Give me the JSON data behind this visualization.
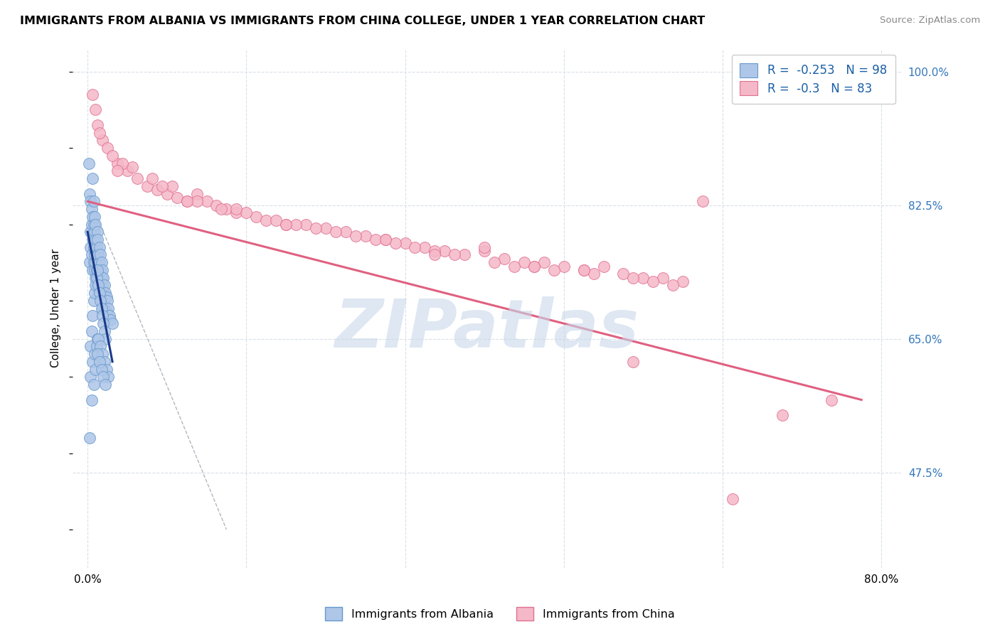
{
  "title": "IMMIGRANTS FROM ALBANIA VS IMMIGRANTS FROM CHINA COLLEGE, UNDER 1 YEAR CORRELATION CHART",
  "source": "Source: ZipAtlas.com",
  "ylabel": "College, Under 1 year",
  "right_yticks": [
    47.5,
    65.0,
    82.5,
    100.0
  ],
  "right_ytick_labels": [
    "47.5%",
    "65.0%",
    "82.5%",
    "100.0%"
  ],
  "xticks": [
    0.0,
    16.0,
    32.0,
    48.0,
    64.0,
    80.0
  ],
  "xtick_labels": [
    "0.0%",
    "",
    "",
    "",
    "",
    "80.0%"
  ],
  "xlim": [
    -1.5,
    82.0
  ],
  "ylim": [
    35.0,
    103.0
  ],
  "albania_color": "#aec6e8",
  "china_color": "#f5b8c8",
  "albania_edge": "#6699cc",
  "china_edge": "#e07090",
  "albania_R": -0.253,
  "albania_N": 98,
  "china_R": -0.3,
  "china_N": 83,
  "watermark": "ZIPatlas",
  "watermark_color": "#c8d8ea",
  "legend_color": "#1a5fa8",
  "albania_line_color": "#1a3a8a",
  "china_line_color": "#e06080",
  "dashed_line_color": "#b0b8c0",
  "grid_color": "#d8e0e8",
  "albania_scatter_x": [
    0.1,
    0.2,
    0.2,
    0.3,
    0.3,
    0.3,
    0.4,
    0.4,
    0.4,
    0.5,
    0.5,
    0.5,
    0.5,
    0.6,
    0.6,
    0.6,
    0.6,
    0.7,
    0.7,
    0.7,
    0.7,
    0.8,
    0.8,
    0.8,
    0.8,
    0.9,
    0.9,
    0.9,
    1.0,
    1.0,
    1.0,
    1.0,
    1.0,
    1.1,
    1.1,
    1.1,
    1.2,
    1.2,
    1.2,
    1.3,
    1.3,
    1.3,
    1.4,
    1.4,
    1.4,
    1.5,
    1.5,
    1.5,
    1.6,
    1.6,
    1.7,
    1.7,
    1.8,
    1.8,
    1.9,
    1.9,
    2.0,
    2.0,
    2.1,
    2.2,
    2.3,
    2.5,
    0.2,
    0.3,
    0.4,
    0.5,
    0.6,
    0.7,
    0.8,
    0.9,
    1.0,
    1.0,
    1.1,
    1.2,
    1.3,
    1.4,
    1.5,
    1.6,
    1.7,
    1.8,
    0.3,
    0.5,
    0.7,
    0.9,
    1.1,
    1.3,
    1.5,
    1.7,
    1.9,
    2.1,
    0.4,
    0.6,
    0.8,
    1.0,
    1.2,
    1.4,
    1.6,
    1.8
  ],
  "albania_scatter_y": [
    88.0,
    75.0,
    84.0,
    79.0,
    83.0,
    77.0,
    80.0,
    76.0,
    82.0,
    81.0,
    78.0,
    74.0,
    86.0,
    80.0,
    77.0,
    75.0,
    83.0,
    79.0,
    76.0,
    74.0,
    81.0,
    78.0,
    75.0,
    73.0,
    80.0,
    77.0,
    74.0,
    72.0,
    79.0,
    76.0,
    74.0,
    72.0,
    78.0,
    76.0,
    73.0,
    71.0,
    77.0,
    75.0,
    72.0,
    76.0,
    74.0,
    71.0,
    75.0,
    73.0,
    70.0,
    74.0,
    72.0,
    69.0,
    73.0,
    71.0,
    72.0,
    70.0,
    71.0,
    69.0,
    70.5,
    68.5,
    70.0,
    68.0,
    69.0,
    68.0,
    67.5,
    67.0,
    52.0,
    64.0,
    66.0,
    68.0,
    70.0,
    71.0,
    72.0,
    73.0,
    74.0,
    65.0,
    72.0,
    71.0,
    70.0,
    69.0,
    68.0,
    67.0,
    66.0,
    65.0,
    60.0,
    62.0,
    63.0,
    64.0,
    65.0,
    64.0,
    63.0,
    62.0,
    61.0,
    60.0,
    57.0,
    59.0,
    61.0,
    63.0,
    62.0,
    61.0,
    60.0,
    59.0
  ],
  "china_scatter_x": [
    0.5,
    1.0,
    1.5,
    2.0,
    3.0,
    4.0,
    5.0,
    6.0,
    7.0,
    8.0,
    9.0,
    10.0,
    11.0,
    12.0,
    13.0,
    14.0,
    15.0,
    17.0,
    18.0,
    20.0,
    22.0,
    24.0,
    26.0,
    28.0,
    30.0,
    32.0,
    34.0,
    36.0,
    38.0,
    40.0,
    42.0,
    44.0,
    46.0,
    48.0,
    50.0,
    52.0,
    54.0,
    56.0,
    58.0,
    60.0,
    1.2,
    2.5,
    4.5,
    6.5,
    8.5,
    11.0,
    13.5,
    16.0,
    19.0,
    21.0,
    23.0,
    25.0,
    27.0,
    29.0,
    31.0,
    33.0,
    35.0,
    37.0,
    41.0,
    43.0,
    45.0,
    47.0,
    51.0,
    55.0,
    57.0,
    59.0,
    62.0,
    0.8,
    3.5,
    7.5,
    15.0,
    20.0,
    30.0,
    40.0,
    50.0,
    70.0,
    75.0,
    3.0,
    10.0,
    35.0,
    45.0,
    55.0,
    65.0
  ],
  "china_scatter_y": [
    97.0,
    93.0,
    91.0,
    90.0,
    88.0,
    87.0,
    86.0,
    85.0,
    84.5,
    84.0,
    83.5,
    83.0,
    84.0,
    83.0,
    82.5,
    82.0,
    81.5,
    81.0,
    80.5,
    80.0,
    80.0,
    79.5,
    79.0,
    78.5,
    78.0,
    77.5,
    77.0,
    76.5,
    76.0,
    76.5,
    75.5,
    75.0,
    75.0,
    74.5,
    74.0,
    74.5,
    73.5,
    73.0,
    73.0,
    72.5,
    92.0,
    89.0,
    87.5,
    86.0,
    85.0,
    83.0,
    82.0,
    81.5,
    80.5,
    80.0,
    79.5,
    79.0,
    78.5,
    78.0,
    77.5,
    77.0,
    76.5,
    76.0,
    75.0,
    74.5,
    74.5,
    74.0,
    73.5,
    73.0,
    72.5,
    72.0,
    83.0,
    95.0,
    88.0,
    85.0,
    82.0,
    80.0,
    78.0,
    77.0,
    74.0,
    55.0,
    57.0,
    87.0,
    83.0,
    76.0,
    74.5,
    62.0,
    44.0
  ]
}
